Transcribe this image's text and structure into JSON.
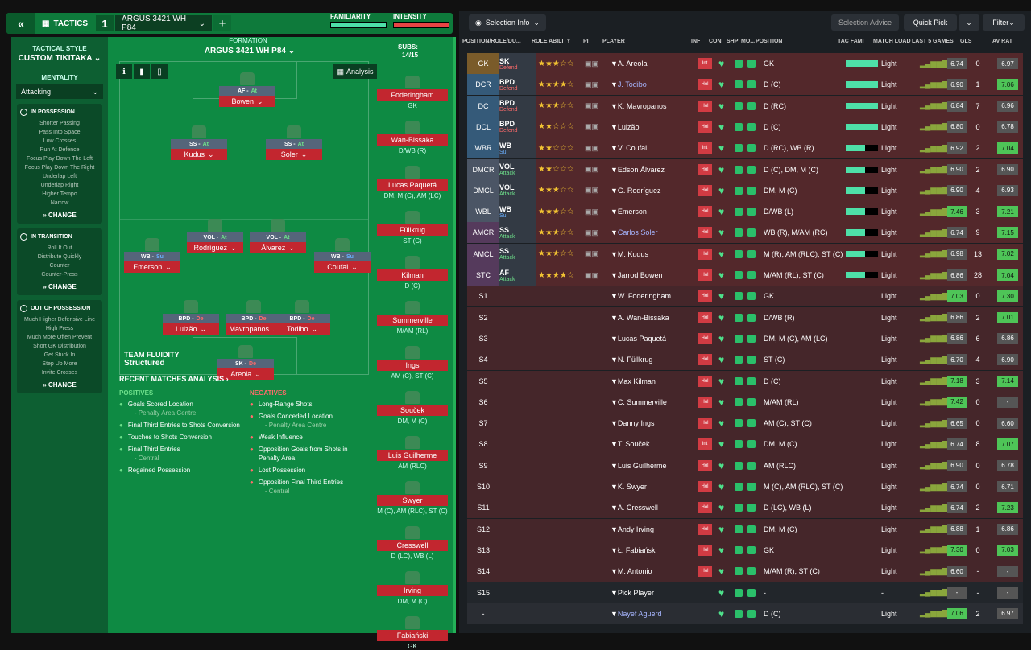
{
  "topbar": {
    "back": "«",
    "tactics": "TACTICS",
    "slot": "1",
    "tactic_name": "ARGUS 3421  WH P84",
    "plus": "+",
    "familiarity": "FAMILIARITY",
    "intensity": "INTENSITY"
  },
  "left": {
    "style_label": "TACTICAL STYLE",
    "style": "CUSTOM TIKITAKA",
    "mentality_label": "MENTALITY",
    "mentality": "Attacking",
    "in_possession": {
      "title": "IN POSSESSION",
      "items": [
        "Shorter Passing",
        "Pass Into Space",
        "Low Crosses",
        "Run At Defence",
        "Focus Play Down The Left",
        "Focus Play Down The Right",
        "Underlap Left",
        "Underlap Right",
        "Higher Tempo",
        "Narrow"
      ]
    },
    "in_transition": {
      "title": "IN TRANSITION",
      "items": [
        "Roll It Out",
        "Distribute Quickly",
        "Counter",
        "Counter-Press"
      ]
    },
    "out_possession": {
      "title": "OUT OF POSSESSION",
      "items": [
        "Much Higher Defensive Line",
        "High Press",
        "Much More Often Prevent Short GK Distribution",
        "Get Stuck In",
        "Step Up More",
        "Invite Crosses"
      ]
    },
    "change": "CHANGE"
  },
  "pitch": {
    "formation_label": "FORMATION",
    "formation": "ARGUS 3421  WH P84",
    "subs_label": "SUBS:",
    "subs": "14/15",
    "analysis": "Analysis",
    "fluidity_label": "TEAM FLUIDITY",
    "fluidity": "Structured",
    "recent": "RECENT MATCHES ANALYSIS ›",
    "players": [
      {
        "role": "AF",
        "duty": "At",
        "name": "Bowen"
      },
      {
        "role": "SS",
        "duty": "At",
        "name": "Kudus"
      },
      {
        "role": "SS",
        "duty": "At",
        "name": "Soler"
      },
      {
        "role": "VOL",
        "duty": "At",
        "name": "Rodríguez"
      },
      {
        "role": "VOL",
        "duty": "At",
        "name": "Álvarez"
      },
      {
        "role": "WB",
        "duty": "Su",
        "name": "Emerson"
      },
      {
        "role": "WB",
        "duty": "Su",
        "name": "Coufal"
      },
      {
        "role": "BPD",
        "duty": "De",
        "name": "Luizão"
      },
      {
        "role": "BPD",
        "duty": "De",
        "name": "Mavropanos"
      },
      {
        "role": "BPD",
        "duty": "De",
        "name": "Todibo"
      },
      {
        "role": "SK",
        "duty": "De",
        "name": "Areola"
      }
    ],
    "positives": {
      "title": "POSITIVES",
      "items": [
        "Goals Scored Location",
        "Final Third Entries to Shots Conversion",
        "Touches to Shots Conversion",
        "Final Third Entries",
        "Regained Possession"
      ],
      "subs": [
        "- Penalty Area Centre",
        "",
        "",
        "- Central",
        ""
      ]
    },
    "negatives": {
      "title": "NEGATIVES",
      "items": [
        "Long-Range Shots",
        "Goals Conceded Location",
        "Weak Influence",
        "Opposition Goals from Shots in Penalty Area",
        "Lost Possession",
        "Opposition Final Third Entries"
      ],
      "subs": [
        "",
        "- Penalty Area Centre",
        "",
        "",
        "",
        "- Central"
      ]
    },
    "subs_list": [
      {
        "name": "Foderingham",
        "pos": "GK"
      },
      {
        "name": "Wan-Bissaka",
        "pos": "D/WB (R)"
      },
      {
        "name": "Lucas Paquetá",
        "pos": "DM, M (C), AM (LC)"
      },
      {
        "name": "Füllkrug",
        "pos": "ST (C)"
      },
      {
        "name": "Kilman",
        "pos": "D (C)"
      },
      {
        "name": "Summerville",
        "pos": "M/AM (RL)"
      },
      {
        "name": "Ings",
        "pos": "AM (C), ST (C)"
      },
      {
        "name": "Souček",
        "pos": "DM, M (C)"
      },
      {
        "name": "Luis Guilherme",
        "pos": "AM (RLC)"
      },
      {
        "name": "Swyer",
        "pos": "M (C), AM (RLC), ST (C)"
      },
      {
        "name": "Cresswell",
        "pos": "D (LC), WB (L)"
      },
      {
        "name": "Irving",
        "pos": "DM, M (C)"
      },
      {
        "name": "Fabiański",
        "pos": "GK"
      }
    ]
  },
  "right": {
    "selection_info": "Selection Info",
    "selection_advice": "Selection Advice",
    "quick_pick": "Quick Pick",
    "filter": "Filter",
    "headers": [
      "POSITION/ROLE/DU...",
      "ROLE ABILITY",
      "PI",
      "PLAYER",
      "INF",
      "CON",
      "SHP",
      "MO...",
      "POSITION",
      "TAC FAMI",
      "MATCH LOAD",
      "LAST 5 GAMES",
      "GLS",
      "AV RAT"
    ],
    "rows": [
      {
        "pos": "GK",
        "role": "SK",
        "duty": "Defend",
        "stars": "★★★☆☆",
        "player": "A. Areola",
        "inf": "Int",
        "position": "GK",
        "load": "Light",
        "rat": "6.74",
        "gls": "0",
        "av": "6.97"
      },
      {
        "pos": "DCR",
        "role": "BPD",
        "duty": "Defend",
        "stars": "★★★★☆",
        "player": "J. Todibo",
        "inf": "Hol",
        "position": "D (C)",
        "load": "Light",
        "rat": "6.90",
        "gls": "1",
        "av": "7.06"
      },
      {
        "pos": "DC",
        "role": "BPD",
        "duty": "Defend",
        "stars": "★★★☆☆",
        "player": "K. Mavropanos",
        "inf": "Hol",
        "position": "D (RC)",
        "load": "Light",
        "rat": "6.84",
        "gls": "7",
        "av": "6.96"
      },
      {
        "pos": "DCL",
        "role": "BPD",
        "duty": "Defend",
        "stars": "★★☆☆☆",
        "player": "Luizão",
        "inf": "Hol",
        "position": "D (C)",
        "load": "Light",
        "rat": "6.80",
        "gls": "0",
        "av": "6.78"
      },
      {
        "pos": "WBR",
        "role": "WB",
        "duty": "Su",
        "stars": "★★☆☆☆",
        "player": "V. Coufal",
        "inf": "Int",
        "position": "D (RC), WB (R)",
        "load": "Light",
        "rat": "6.92",
        "gls": "2",
        "av": "7.04"
      },
      {
        "pos": "DMCR",
        "role": "VOL",
        "duty": "Attack",
        "stars": "★★☆☆☆",
        "player": "Edson Álvarez",
        "inf": "Hol",
        "position": "D (C), DM, M (C)",
        "load": "Light",
        "rat": "6.90",
        "gls": "2",
        "av": "6.90"
      },
      {
        "pos": "DMCL",
        "role": "VOL",
        "duty": "Attack",
        "stars": "★★★☆☆",
        "player": "G. Rodríguez",
        "inf": "Hol",
        "position": "DM, M (C)",
        "load": "Light",
        "rat": "6.90",
        "gls": "4",
        "av": "6.93"
      },
      {
        "pos": "WBL",
        "role": "WB",
        "duty": "Su",
        "stars": "★★★☆☆",
        "player": "Emerson",
        "inf": "Hol",
        "position": "D/WB (L)",
        "load": "Light",
        "rat": "7.46",
        "gls": "3",
        "av": "7.21"
      },
      {
        "pos": "AMCR",
        "role": "SS",
        "duty": "Attack",
        "stars": "★★★☆☆",
        "player": "Carlos Soler",
        "inf": "Hol",
        "position": "WB (R), M/AM (RC)",
        "load": "Light",
        "rat": "6.74",
        "gls": "9",
        "av": "7.15"
      },
      {
        "pos": "AMCL",
        "role": "SS",
        "duty": "Attack",
        "stars": "★★★☆☆",
        "player": "M. Kudus",
        "inf": "Hol",
        "position": "M (R), AM (RLC), ST (C)",
        "load": "Light",
        "rat": "6.98",
        "gls": "13",
        "av": "7.02"
      },
      {
        "pos": "STC",
        "role": "AF",
        "duty": "Attack",
        "stars": "★★★★☆",
        "player": "Jarrod Bowen",
        "inf": "Hol",
        "position": "M/AM (RL), ST (C)",
        "load": "Light",
        "rat": "6.86",
        "gls": "28",
        "av": "7.04"
      },
      {
        "pos": "S1",
        "role": "",
        "duty": "",
        "stars": "",
        "player": "W. Foderingham",
        "inf": "Hol",
        "position": "GK",
        "load": "Light",
        "rat": "7.03",
        "gls": "0",
        "av": "7.30"
      },
      {
        "pos": "S2",
        "role": "",
        "duty": "",
        "stars": "",
        "player": "A. Wan-Bissaka",
        "inf": "Hol",
        "position": "D/WB (R)",
        "load": "Light",
        "rat": "6.86",
        "gls": "2",
        "av": "7.01"
      },
      {
        "pos": "S3",
        "role": "",
        "duty": "",
        "stars": "",
        "player": "Lucas Paquetá",
        "inf": "Hol",
        "position": "DM, M (C), AM (LC)",
        "load": "Light",
        "rat": "6.86",
        "gls": "6",
        "av": "6.86"
      },
      {
        "pos": "S4",
        "role": "",
        "duty": "",
        "stars": "",
        "player": "N. Füllkrug",
        "inf": "Hol",
        "position": "ST (C)",
        "load": "Light",
        "rat": "6.70",
        "gls": "4",
        "av": "6.90"
      },
      {
        "pos": "S5",
        "role": "",
        "duty": "",
        "stars": "",
        "player": "Max Kilman",
        "inf": "Hol",
        "position": "D (C)",
        "load": "Light",
        "rat": "7.18",
        "gls": "3",
        "av": "7.14"
      },
      {
        "pos": "S6",
        "role": "",
        "duty": "",
        "stars": "",
        "player": "C. Summerville",
        "inf": "Hol",
        "position": "M/AM (RL)",
        "load": "Light",
        "rat": "7.42",
        "gls": "0",
        "av": "-"
      },
      {
        "pos": "S7",
        "role": "",
        "duty": "",
        "stars": "",
        "player": "Danny Ings",
        "inf": "Hol",
        "position": "AM (C), ST (C)",
        "load": "Light",
        "rat": "6.65",
        "gls": "0",
        "av": "6.60"
      },
      {
        "pos": "S8",
        "role": "",
        "duty": "",
        "stars": "",
        "player": "T. Souček",
        "inf": "Int",
        "position": "DM, M (C)",
        "load": "Light",
        "rat": "6.74",
        "gls": "8",
        "av": "7.07"
      },
      {
        "pos": "S9",
        "role": "",
        "duty": "",
        "stars": "",
        "player": "Luis Guilherme",
        "inf": "Hol",
        "position": "AM (RLC)",
        "load": "Light",
        "rat": "6.90",
        "gls": "0",
        "av": "6.78"
      },
      {
        "pos": "S10",
        "role": "",
        "duty": "",
        "stars": "",
        "player": "K. Swyer",
        "inf": "Hol",
        "position": "M (C), AM (RLC), ST (C)",
        "load": "Light",
        "rat": "6.74",
        "gls": "0",
        "av": "6.71"
      },
      {
        "pos": "S11",
        "role": "",
        "duty": "",
        "stars": "",
        "player": "A. Cresswell",
        "inf": "Hol",
        "position": "D (LC), WB (L)",
        "load": "Light",
        "rat": "6.74",
        "gls": "2",
        "av": "7.23"
      },
      {
        "pos": "S12",
        "role": "",
        "duty": "",
        "stars": "",
        "player": "Andy Irving",
        "inf": "Hol",
        "position": "DM, M (C)",
        "load": "Light",
        "rat": "6.88",
        "gls": "1",
        "av": "6.86"
      },
      {
        "pos": "S13",
        "role": "",
        "duty": "",
        "stars": "",
        "player": "Ł. Fabiański",
        "inf": "Hol",
        "position": "GK",
        "load": "Light",
        "rat": "7.30",
        "gls": "0",
        "av": "7.03"
      },
      {
        "pos": "S14",
        "role": "",
        "duty": "",
        "stars": "",
        "player": "M. Antonio",
        "inf": "Hol",
        "position": "M/AM (R), ST (C)",
        "load": "Light",
        "rat": "6.60",
        "gls": "-",
        "av": "-"
      },
      {
        "pos": "S15",
        "role": "",
        "duty": "",
        "stars": "",
        "player": "Pick Player",
        "inf": "",
        "position": "-",
        "load": "-",
        "rat": "-",
        "gls": "-",
        "av": "-"
      },
      {
        "pos": "-",
        "role": "",
        "duty": "",
        "stars": "",
        "player": "Nayef Aguerd",
        "inf": "",
        "position": "D (C)",
        "load": "Light",
        "rat": "7.06",
        "gls": "2",
        "av": "6.97"
      }
    ]
  },
  "colors": {
    "accent": "#24b158",
    "pitch": "#0e8a43",
    "card": "#c2262f",
    "good": "#4ec457",
    "panel": "#1b1f23"
  }
}
